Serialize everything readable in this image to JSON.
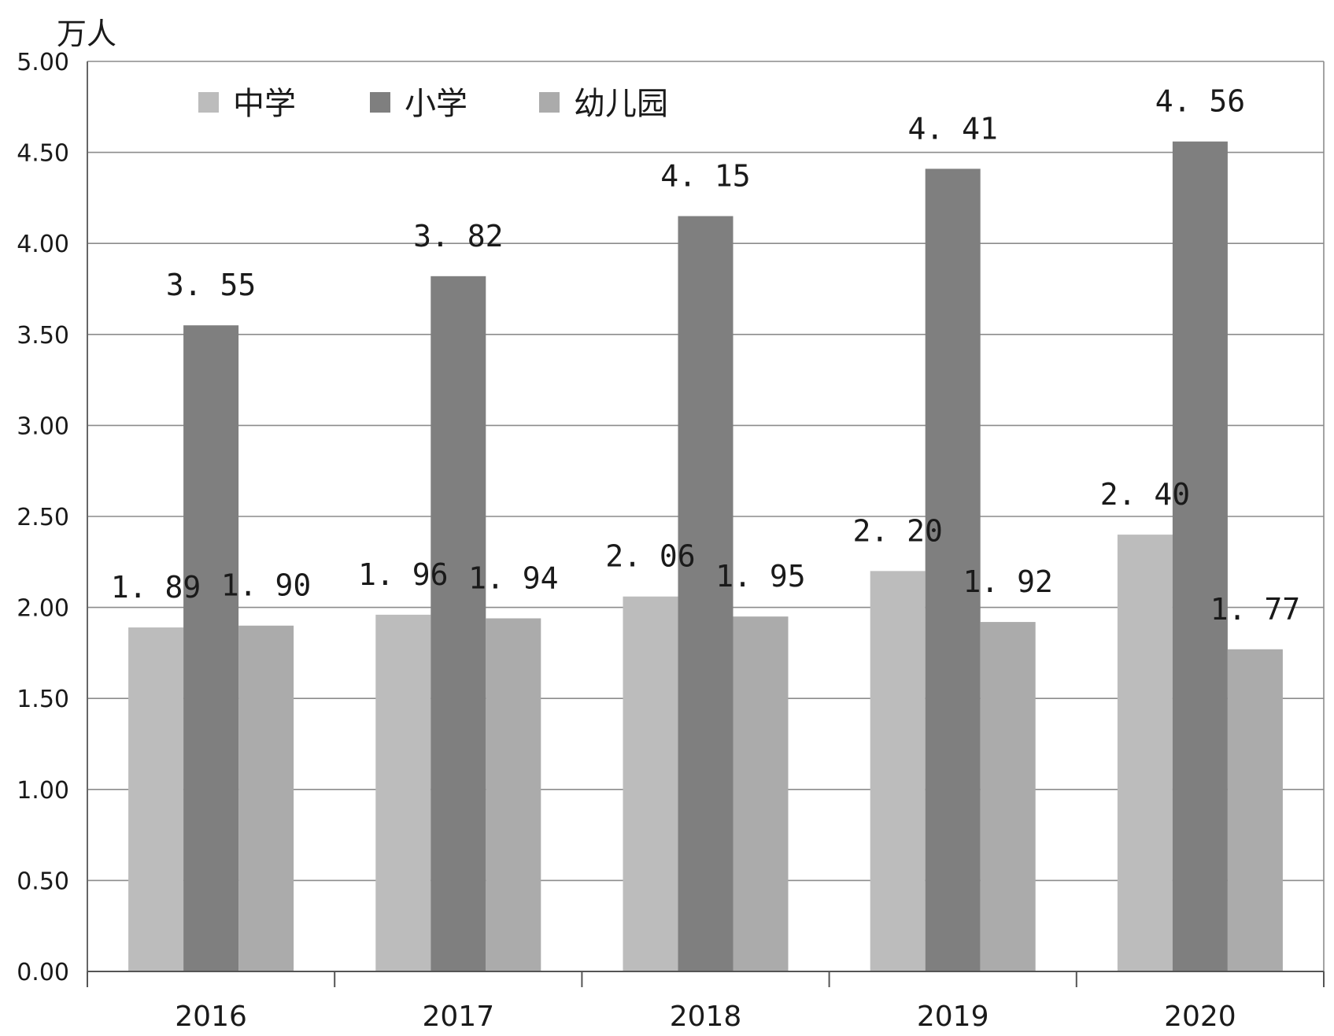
{
  "chart_data": {
    "type": "bar",
    "unit_label": "万人",
    "categories": [
      "2016",
      "2017",
      "2018",
      "2019",
      "2020"
    ],
    "series": [
      {
        "name": "中学",
        "color": "#bcbcbc",
        "values": [
          1.89,
          1.96,
          2.06,
          2.2,
          2.4
        ],
        "labels": [
          "1. 89",
          "1. 96",
          "2. 06",
          "2. 20",
          "2. 40"
        ]
      },
      {
        "name": "小学",
        "color": "#7f7f7f",
        "values": [
          3.55,
          3.82,
          4.15,
          4.41,
          4.56
        ],
        "labels": [
          "3. 55",
          "3. 82",
          "4. 15",
          "4. 41",
          "4. 56"
        ]
      },
      {
        "name": "幼儿园",
        "color": "#ababab",
        "values": [
          1.9,
          1.94,
          1.95,
          1.92,
          1.77
        ],
        "labels": [
          "1. 90",
          "1. 94",
          "1. 95",
          "1. 92",
          "1. 77"
        ]
      }
    ],
    "ylim": [
      0,
      5
    ],
    "yticks": [
      "0.00",
      "0.50",
      "1.00",
      "1.50",
      "2.00",
      "2.50",
      "3.00",
      "3.50",
      "4.00",
      "4.50",
      "5.00"
    ],
    "grid": true,
    "legend": "top-left"
  }
}
